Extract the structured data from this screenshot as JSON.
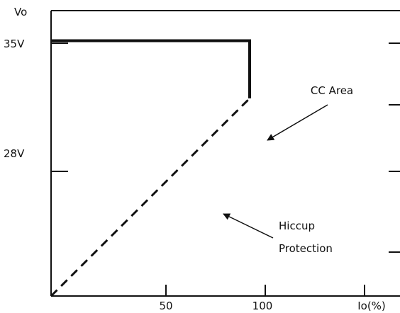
{
  "chart_data": {
    "type": "line",
    "ylabel": "Vo",
    "xlabel": "Io(%)",
    "xlim": [
      0,
      165
    ],
    "ylim": [
      0,
      35
    ],
    "x_ticks": [
      {
        "value": 50,
        "label": "50"
      },
      {
        "value": 100,
        "label": "100"
      },
      {
        "value": 147,
        "label": "Io(%)"
      }
    ],
    "y_ticks": [
      {
        "value": 35,
        "label": "35V"
      },
      {
        "value": 28,
        "label": "28V"
      }
    ],
    "series": [
      {
        "style": "solid",
        "points": [
          [
            0,
            35
          ],
          [
            100,
            35
          ],
          [
            100,
            27.1
          ]
        ]
      },
      {
        "style": "dashed",
        "points": [
          [
            0,
            0
          ],
          [
            100,
            27.1
          ]
        ]
      }
    ],
    "annotations": [
      {
        "text": "CC Area",
        "points_to": [
          100,
          31
        ]
      },
      {
        "text": "Hiccup",
        "text2": "Protection",
        "points_to": [
          82,
          24
        ]
      }
    ]
  }
}
